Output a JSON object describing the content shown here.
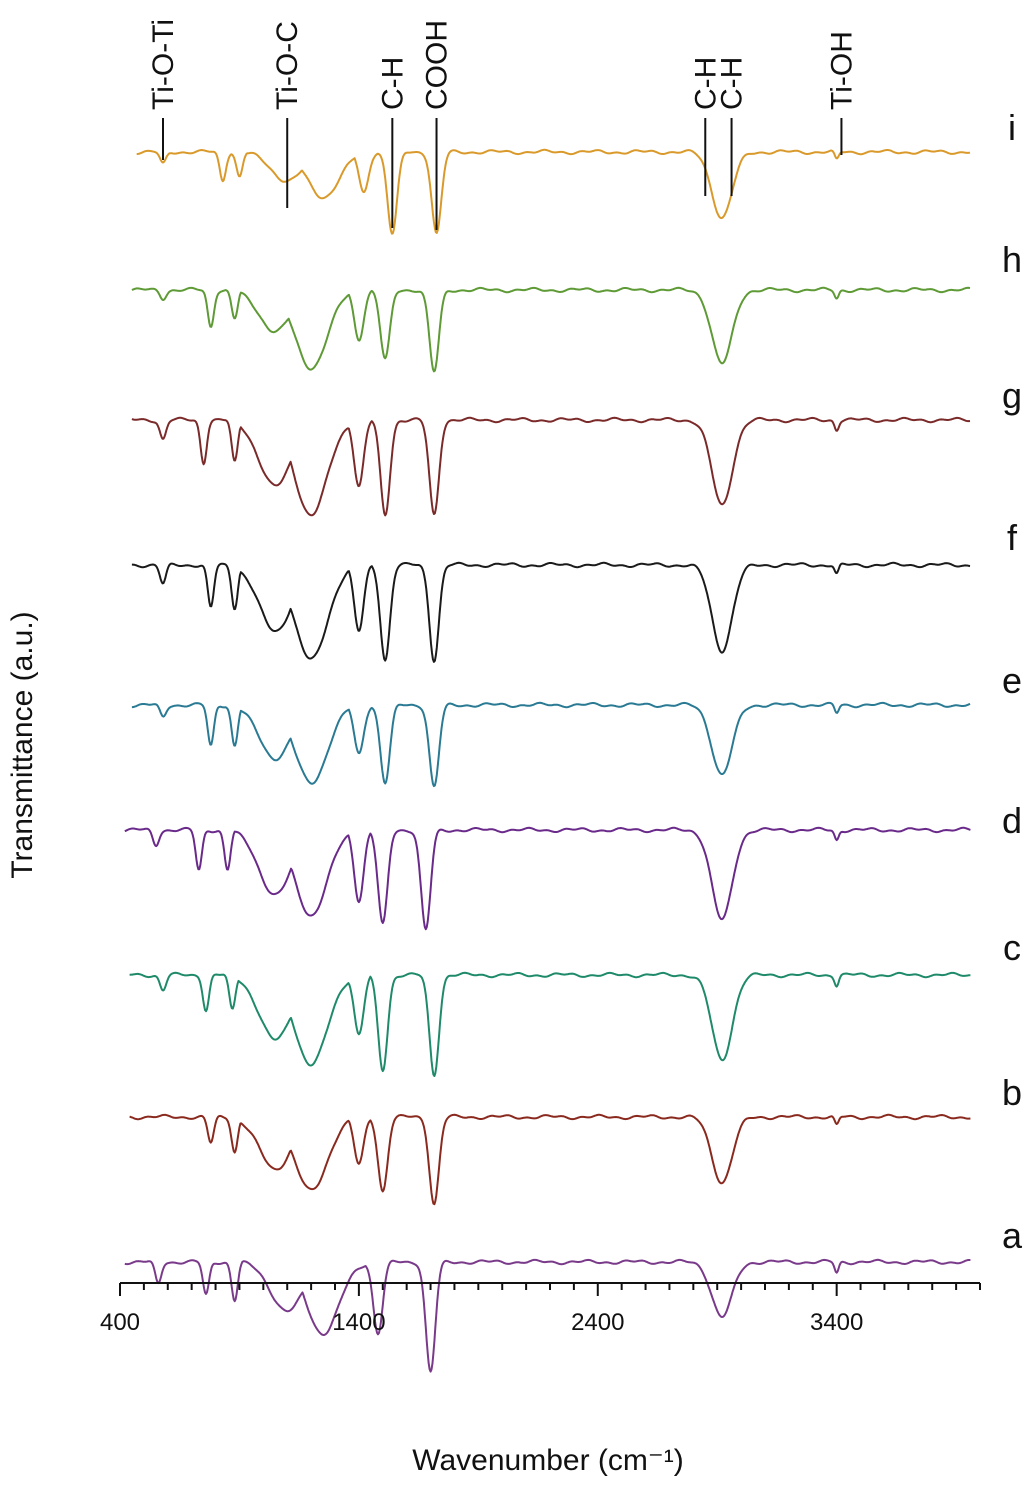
{
  "chart_data": {
    "type": "line",
    "xlabel": "Wavenumber (cm⁻¹)",
    "ylabel": "Transmittance (a.u.)",
    "xlim": [
      400,
      4000
    ],
    "x_ticks": [
      400,
      1400,
      2400,
      3400
    ],
    "y_axis_visible": false,
    "grid": false,
    "x_minor_tick_step": 100,
    "legend": "series letters placed at right end of each trace",
    "series": [
      {
        "name": "i",
        "color": "#d99a2b",
        "x_range": [
          470,
          3960
        ],
        "features": [
          {
            "x": 580,
            "depth": 0.15
          },
          {
            "x": 830,
            "depth": 0.35
          },
          {
            "x": 900,
            "depth": 0.3
          },
          {
            "x": 1100,
            "depth": 0.35
          },
          {
            "x": 1250,
            "depth": 0.55
          },
          {
            "x": 1420,
            "depth": 0.5
          },
          {
            "x": 1540,
            "depth": 1.0
          },
          {
            "x": 1725,
            "depth": 1.0
          },
          {
            "x": 2920,
            "depth": 0.8
          },
          {
            "x": 3400,
            "depth": 0.1
          }
        ]
      },
      {
        "name": "h",
        "color": "#5e9a35",
        "x_range": [
          450,
          3960
        ],
        "features": [
          {
            "x": 580,
            "depth": 0.1
          },
          {
            "x": 780,
            "depth": 0.45
          },
          {
            "x": 880,
            "depth": 0.35
          },
          {
            "x": 1050,
            "depth": 0.5
          },
          {
            "x": 1200,
            "depth": 0.95
          },
          {
            "x": 1400,
            "depth": 0.6
          },
          {
            "x": 1510,
            "depth": 0.85
          },
          {
            "x": 1715,
            "depth": 1.0
          },
          {
            "x": 2920,
            "depth": 0.9
          },
          {
            "x": 3400,
            "depth": 0.1
          }
        ]
      },
      {
        "name": "g",
        "color": "#7b2a2a",
        "x_range": [
          450,
          3960
        ],
        "features": [
          {
            "x": 580,
            "depth": 0.2
          },
          {
            "x": 750,
            "depth": 0.45
          },
          {
            "x": 880,
            "depth": 0.45
          },
          {
            "x": 1050,
            "depth": 0.7
          },
          {
            "x": 1200,
            "depth": 1.0
          },
          {
            "x": 1400,
            "depth": 0.7
          },
          {
            "x": 1510,
            "depth": 1.0
          },
          {
            "x": 1715,
            "depth": 1.0
          },
          {
            "x": 2920,
            "depth": 0.9
          },
          {
            "x": 3400,
            "depth": 0.1
          }
        ]
      },
      {
        "name": "f",
        "color": "#1a1a1a",
        "x_range": [
          450,
          3960
        ],
        "features": [
          {
            "x": 580,
            "depth": 0.2
          },
          {
            "x": 780,
            "depth": 0.45
          },
          {
            "x": 880,
            "depth": 0.45
          },
          {
            "x": 1050,
            "depth": 0.7
          },
          {
            "x": 1200,
            "depth": 1.0
          },
          {
            "x": 1400,
            "depth": 0.7
          },
          {
            "x": 1510,
            "depth": 1.0
          },
          {
            "x": 1715,
            "depth": 1.0
          },
          {
            "x": 2920,
            "depth": 0.9
          },
          {
            "x": 3400,
            "depth": 0.1
          }
        ]
      },
      {
        "name": "e",
        "color": "#2a7a94",
        "x_range": [
          450,
          3960
        ],
        "features": [
          {
            "x": 580,
            "depth": 0.15
          },
          {
            "x": 780,
            "depth": 0.5
          },
          {
            "x": 880,
            "depth": 0.5
          },
          {
            "x": 1050,
            "depth": 0.65
          },
          {
            "x": 1200,
            "depth": 0.95
          },
          {
            "x": 1400,
            "depth": 0.6
          },
          {
            "x": 1510,
            "depth": 0.95
          },
          {
            "x": 1715,
            "depth": 1.0
          },
          {
            "x": 2920,
            "depth": 0.85
          },
          {
            "x": 3400,
            "depth": 0.1
          }
        ]
      },
      {
        "name": "d",
        "color": "#6a2a8a",
        "x_range": [
          420,
          3960
        ],
        "features": [
          {
            "x": 550,
            "depth": 0.15
          },
          {
            "x": 730,
            "depth": 0.4
          },
          {
            "x": 850,
            "depth": 0.4
          },
          {
            "x": 1050,
            "depth": 0.65
          },
          {
            "x": 1200,
            "depth": 0.85
          },
          {
            "x": 1400,
            "depth": 0.7
          },
          {
            "x": 1500,
            "depth": 0.95
          },
          {
            "x": 1680,
            "depth": 1.0
          },
          {
            "x": 2920,
            "depth": 0.9
          },
          {
            "x": 3400,
            "depth": 0.1
          }
        ]
      },
      {
        "name": "c",
        "color": "#1f8a6a",
        "x_range": [
          440,
          3960
        ],
        "features": [
          {
            "x": 580,
            "depth": 0.15
          },
          {
            "x": 760,
            "depth": 0.35
          },
          {
            "x": 870,
            "depth": 0.35
          },
          {
            "x": 1050,
            "depth": 0.65
          },
          {
            "x": 1200,
            "depth": 0.9
          },
          {
            "x": 1400,
            "depth": 0.6
          },
          {
            "x": 1500,
            "depth": 0.95
          },
          {
            "x": 1715,
            "depth": 1.0
          },
          {
            "x": 2920,
            "depth": 0.85
          },
          {
            "x": 3400,
            "depth": 0.1
          }
        ]
      },
      {
        "name": "b",
        "color": "#8a2a1f",
        "x_range": [
          440,
          3960
        ],
        "features": [
          {
            "x": 780,
            "depth": 0.3
          },
          {
            "x": 880,
            "depth": 0.4
          },
          {
            "x": 1050,
            "depth": 0.6
          },
          {
            "x": 1200,
            "depth": 0.85
          },
          {
            "x": 1400,
            "depth": 0.55
          },
          {
            "x": 1500,
            "depth": 0.85
          },
          {
            "x": 1715,
            "depth": 1.0
          },
          {
            "x": 2920,
            "depth": 0.75
          },
          {
            "x": 3400,
            "depth": 0.1
          }
        ]
      },
      {
        "name": "a",
        "color": "#7a3a8a",
        "x_range": [
          420,
          3960
        ],
        "features": [
          {
            "x": 560,
            "depth": 0.2
          },
          {
            "x": 760,
            "depth": 0.3
          },
          {
            "x": 880,
            "depth": 0.35
          },
          {
            "x": 1100,
            "depth": 0.45
          },
          {
            "x": 1250,
            "depth": 0.65
          },
          {
            "x": 1480,
            "depth": 0.65
          },
          {
            "x": 1700,
            "depth": 1.0
          },
          {
            "x": 2920,
            "depth": 0.5
          },
          {
            "x": 3400,
            "depth": 0.1
          }
        ]
      }
    ],
    "peak_annotations": [
      {
        "label": "Ti-O-Ti",
        "x": 580
      },
      {
        "label": "Ti-O-C",
        "x": 1100
      },
      {
        "label": "C-H",
        "x": 1540
      },
      {
        "label": "COOH",
        "x": 1725
      },
      {
        "label": "C-H",
        "x": 2850
      },
      {
        "label": "C-H",
        "x": 2960
      },
      {
        "label": "Ti-OH",
        "x": 3420
      }
    ]
  }
}
